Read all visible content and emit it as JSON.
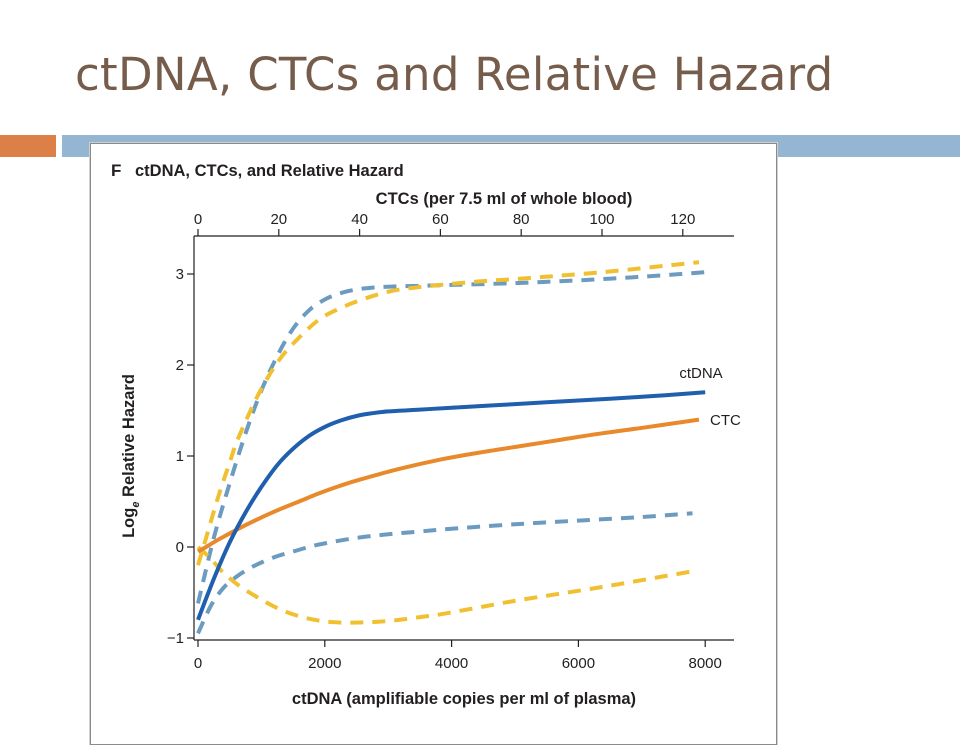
{
  "slide": {
    "title": "ctDNA, CTCs and Relative Hazard",
    "accent_colors": {
      "title_text": "#765c4b",
      "bar_left": "#dd8047",
      "bar_right": "#94b6d2"
    }
  },
  "chart_data": {
    "type": "line",
    "panel_letter": "F",
    "title": "ctDNA, CTCs, and Relative Hazard",
    "xlabel": "ctDNA (amplifiable copies per ml of plasma)",
    "x2label": "CTCs (per 7.5 ml of whole blood)",
    "ylabel_main": "Log",
    "ylabel_sub": "e",
    "ylabel_rest": " Relative Hazard",
    "xlim": [
      0,
      8500
    ],
    "ylim": [
      -1,
      3.2
    ],
    "x2lim": [
      0,
      130
    ],
    "xticks": [
      0,
      2000,
      4000,
      6000,
      8000
    ],
    "xtick_labels": [
      "0",
      "2000",
      "4000",
      "6000",
      "8000"
    ],
    "x2ticks": [
      0,
      20,
      40,
      60,
      80,
      100,
      120
    ],
    "x2tick_labels": [
      "0",
      "20",
      "40",
      "60",
      "80",
      "100",
      "120"
    ],
    "yticks": [
      -1,
      0,
      1,
      2,
      3
    ],
    "ytick_labels": [
      "−1",
      "0",
      "1",
      "2",
      "3"
    ],
    "grid": false,
    "series": [
      {
        "name": "ctDNA",
        "axis": "bottom",
        "style": "solid",
        "color": "#1f5fad",
        "x": [
          0,
          250,
          500,
          750,
          1000,
          1250,
          1500,
          1750,
          2000,
          2250,
          2500,
          2750,
          3000,
          3500,
          4000,
          5000,
          6000,
          7000,
          8000
        ],
        "y": [
          -0.8,
          -0.35,
          0.05,
          0.38,
          0.66,
          0.9,
          1.08,
          1.22,
          1.32,
          1.39,
          1.44,
          1.47,
          1.49,
          1.51,
          1.53,
          1.57,
          1.61,
          1.65,
          1.7
        ]
      },
      {
        "name": "CTC",
        "axis": "top",
        "style": "solid",
        "color": "#e88a2b",
        "x": [
          0,
          2,
          5,
          10,
          15,
          20,
          25,
          30,
          35,
          40,
          50,
          60,
          70,
          80,
          90,
          100,
          110,
          124
        ],
        "y": [
          -0.05,
          0.0,
          0.08,
          0.2,
          0.31,
          0.41,
          0.5,
          0.59,
          0.67,
          0.74,
          0.86,
          0.96,
          1.04,
          1.11,
          1.18,
          1.25,
          1.31,
          1.4
        ]
      },
      {
        "axis": "bottom",
        "style": "dashed",
        "color": "#6b9bc1",
        "x": [
          0,
          250,
          500,
          750,
          1000,
          1250,
          1500,
          1750,
          2000,
          2250,
          2500,
          2750,
          3000,
          3500,
          4000,
          5000,
          6000,
          7000,
          8000
        ],
        "y": [
          -0.62,
          0.1,
          0.7,
          1.25,
          1.72,
          2.1,
          2.4,
          2.6,
          2.72,
          2.79,
          2.83,
          2.85,
          2.86,
          2.87,
          2.88,
          2.9,
          2.93,
          2.97,
          3.02
        ]
      },
      {
        "axis": "bottom",
        "style": "dashed",
        "color": "#6b9bc1",
        "x": [
          0,
          200,
          400,
          600,
          800,
          1000,
          1250,
          1500,
          1750,
          2000,
          2500,
          3000,
          3500,
          4000,
          5000,
          6000,
          7000,
          7800
        ],
        "y": [
          -0.95,
          -0.65,
          -0.45,
          -0.33,
          -0.24,
          -0.17,
          -0.1,
          -0.05,
          0.0,
          0.04,
          0.1,
          0.14,
          0.17,
          0.2,
          0.25,
          0.29,
          0.33,
          0.37
        ]
      },
      {
        "axis": "top",
        "style": "dashed",
        "color": "#f0c030",
        "x": [
          0,
          2,
          5,
          8,
          10,
          15,
          20,
          25,
          30,
          35,
          40,
          45,
          50,
          60,
          70,
          80,
          100,
          124
        ],
        "y": [
          -0.2,
          0.1,
          0.55,
          0.95,
          1.2,
          1.68,
          2.05,
          2.3,
          2.5,
          2.62,
          2.71,
          2.78,
          2.83,
          2.88,
          2.92,
          2.95,
          3.02,
          3.13
        ]
      },
      {
        "axis": "top",
        "style": "dashed",
        "color": "#f0c030",
        "x": [
          0,
          3,
          6,
          10,
          15,
          20,
          25,
          30,
          35,
          40,
          45,
          50,
          55,
          60,
          70,
          80,
          100,
          122
        ],
        "y": [
          0.0,
          -0.12,
          -0.27,
          -0.42,
          -0.56,
          -0.68,
          -0.76,
          -0.81,
          -0.83,
          -0.83,
          -0.82,
          -0.8,
          -0.77,
          -0.74,
          -0.66,
          -0.58,
          -0.44,
          -0.27
        ]
      }
    ],
    "series_labels": [
      {
        "text": "ctDNA",
        "series_index": 0
      },
      {
        "text": "CTC",
        "series_index": 1
      }
    ]
  }
}
